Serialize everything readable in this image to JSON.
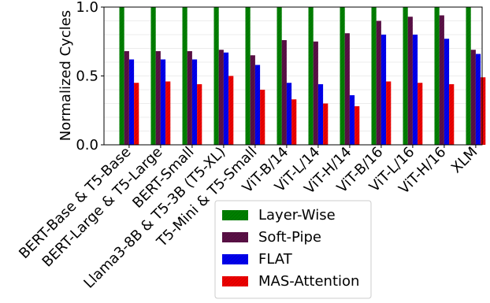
{
  "chart_data": {
    "type": "bar",
    "ylabel": "Normalized Cycles",
    "ylim": [
      0,
      1.0
    ],
    "yticks": [
      "0.0",
      "0.5",
      "1.0"
    ],
    "grid": true,
    "legend_position": "bottom-center",
    "categories": [
      "BERT-Base & T5-Base",
      "BERT-Large & T5-Large",
      "BERT-Small",
      "Llama3-8B & T5-3B (T5-XL)",
      "T5-Mini & T5-Small",
      "ViT-B/14",
      "ViT-L/14",
      "ViT-H/14",
      "ViT-B/16",
      "ViT-L/16",
      "ViT-H/16",
      "XLM"
    ],
    "series": [
      {
        "name": "Layer-Wise",
        "color": "#008000",
        "values": [
          1.0,
          1.0,
          1.0,
          1.0,
          1.0,
          1.0,
          1.0,
          1.0,
          1.0,
          1.0,
          1.0,
          1.0
        ]
      },
      {
        "name": "Soft-Pipe",
        "color": "#5a1046",
        "values": [
          0.68,
          0.68,
          0.68,
          0.69,
          0.65,
          0.76,
          0.75,
          0.81,
          0.9,
          0.93,
          0.94,
          0.69
        ]
      },
      {
        "name": "FLAT",
        "color": "#0000ee",
        "values": [
          0.62,
          0.62,
          0.62,
          0.67,
          0.58,
          0.45,
          0.44,
          0.36,
          0.8,
          0.8,
          0.77,
          0.66
        ]
      },
      {
        "name": "MAS-Attention",
        "color": "#ee0000",
        "values": [
          0.45,
          0.46,
          0.44,
          0.5,
          0.4,
          0.33,
          0.3,
          0.28,
          0.46,
          0.45,
          0.44,
          0.49
        ]
      }
    ]
  }
}
